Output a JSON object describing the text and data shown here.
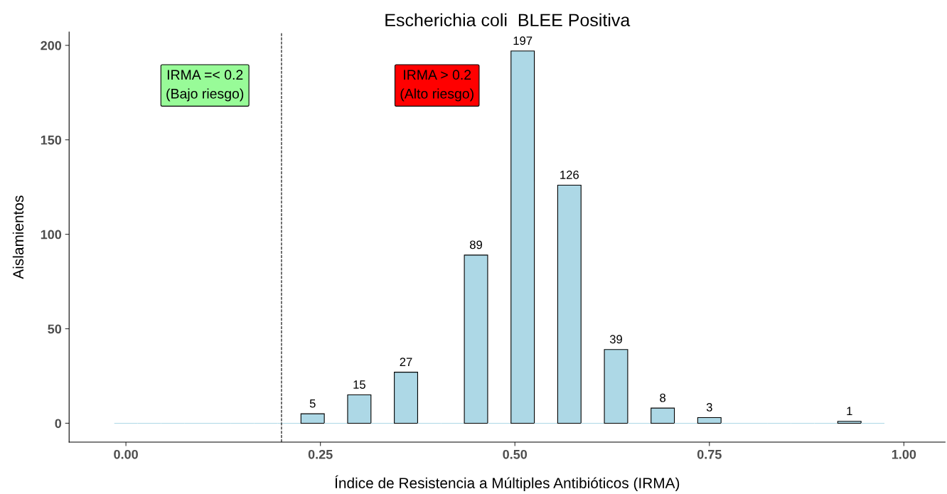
{
  "chart_data": {
    "type": "histogram",
    "title": "Escherichia coli  BLEE Positiva",
    "xlabel": "Índice de Resistencia a Múltiples Antibióticos (IRMA)",
    "ylabel": "Aislamientos",
    "bins": [
      -0.015,
      0.015,
      0.045,
      0.075,
      0.105,
      0.135,
      0.165,
      0.195,
      0.225,
      0.255,
      0.285,
      0.315,
      0.345,
      0.375,
      0.405,
      0.435,
      0.465,
      0.495,
      0.525,
      0.555,
      0.585,
      0.615,
      0.645,
      0.675,
      0.705,
      0.735,
      0.765,
      0.795,
      0.825,
      0.855,
      0.885,
      0.915,
      0.945,
      0.975
    ],
    "values": [
      0,
      0,
      0,
      0,
      0,
      0,
      0,
      0,
      5,
      0,
      15,
      0,
      27,
      0,
      0,
      89,
      0,
      197,
      0,
      126,
      0,
      39,
      0,
      8,
      0,
      3,
      0,
      0,
      0,
      0,
      0,
      1,
      0
    ],
    "value_labels": [
      null,
      null,
      null,
      null,
      null,
      null,
      null,
      null,
      "5",
      null,
      "15",
      null,
      "27",
      null,
      null,
      "89",
      null,
      "197",
      null,
      "126",
      null,
      "39",
      null,
      "8",
      null,
      "3",
      null,
      null,
      null,
      null,
      null,
      "1",
      null
    ],
    "color": "#add8e6",
    "xlim": [
      -0.073,
      1.053
    ],
    "xticks": [
      {
        "value": 0,
        "label": "0.00"
      },
      {
        "value": 0.25,
        "label": "0.25"
      },
      {
        "value": 0.5,
        "label": "0.50"
      },
      {
        "value": 0.75,
        "label": "0.75"
      },
      {
        "value": 1,
        "label": "1.00"
      }
    ],
    "ylim": [
      -10,
      207
    ],
    "yticks": [
      0,
      50,
      100,
      150,
      200
    ],
    "ref_lines": [
      {
        "axis": "x",
        "value": 0.2,
        "line_style": "dashed",
        "color": "#000000"
      }
    ],
    "annotations": [
      "IRMA =< 0.2\n(Bajo riesgo)",
      "IRMA > 0.2\n(Alto riesgo)"
    ],
    "grid": false,
    "legend": false
  }
}
